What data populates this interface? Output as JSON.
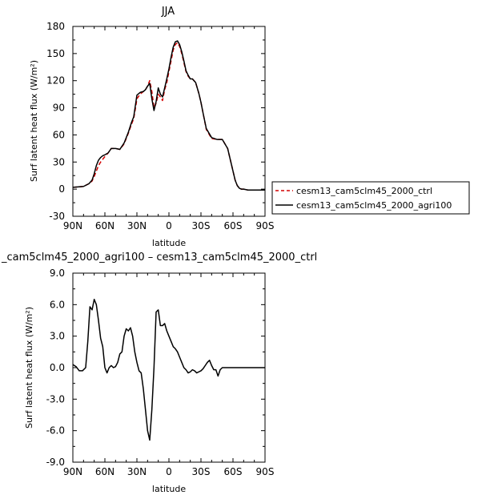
{
  "chart_data": [
    {
      "type": "line",
      "title": "JJA",
      "xlabel": "latitude",
      "ylabel": "Surf latent heat flux (W/m²)",
      "xlim": [
        90,
        -90
      ],
      "ylim": [
        -30,
        180
      ],
      "x_tick_values": [
        90,
        60,
        30,
        0,
        -30,
        -60,
        -90
      ],
      "x_tick_labels": [
        "90N",
        "60N",
        "30N",
        "0",
        "30S",
        "60S",
        "90S"
      ],
      "y_ticks": [
        -30,
        0,
        30,
        60,
        90,
        120,
        150,
        180
      ],
      "y_tick_labels": [
        "-30",
        "0",
        "30",
        "60",
        "90",
        "120",
        "150",
        "180"
      ],
      "legend_position": "right",
      "series": [
        {
          "name": "cesm13_cam5clm45_2000_ctrl",
          "color": "#d40000",
          "dash": true,
          "x": [
            90,
            80,
            75,
            72,
            70,
            68,
            66,
            64,
            62,
            60,
            57,
            54,
            50,
            46,
            42,
            38,
            35,
            33,
            31,
            30,
            27,
            24,
            22,
            20,
            18,
            16,
            14,
            12,
            10,
            8,
            6,
            4,
            2,
            0,
            -2,
            -4,
            -6,
            -8,
            -10,
            -12,
            -14,
            -16,
            -18,
            -20,
            -22,
            -25,
            -28,
            -30,
            -32,
            -35,
            -40,
            -45,
            -50,
            -55,
            -60,
            -62,
            -64,
            -66,
            -68,
            -70,
            -74,
            -78,
            -82,
            -86,
            -90
          ],
          "y": [
            2,
            3,
            6,
            9,
            14,
            20,
            26,
            30,
            33,
            36,
            40,
            45,
            45,
            44,
            50,
            62,
            72,
            78,
            92,
            100,
            105,
            108,
            110,
            114,
            120,
            108,
            90,
            95,
            105,
            102,
            98,
            110,
            118,
            130,
            142,
            154,
            160,
            162,
            158,
            150,
            140,
            130,
            125,
            122,
            122,
            118,
            106,
            96,
            84,
            66,
            56,
            55,
            55,
            45,
            20,
            10,
            4,
            1,
            0,
            0,
            -1,
            -1,
            -1,
            -1,
            -1
          ]
        },
        {
          "name": "cesm13_cam5clm45_2000_agri100",
          "color": "#000000",
          "dash": false,
          "x": [
            90,
            80,
            75,
            72,
            70,
            68,
            66,
            64,
            62,
            60,
            57,
            54,
            50,
            46,
            42,
            38,
            35,
            33,
            31,
            30,
            27,
            24,
            22,
            20,
            18,
            16,
            14,
            12,
            10,
            8,
            6,
            4,
            2,
            0,
            -2,
            -4,
            -6,
            -8,
            -10,
            -12,
            -14,
            -16,
            -18,
            -20,
            -22,
            -25,
            -28,
            -30,
            -32,
            -35,
            -40,
            -45,
            -50,
            -55,
            -60,
            -62,
            -64,
            -66,
            -68,
            -70,
            -74,
            -78,
            -82,
            -86,
            -90
          ],
          "y": [
            2,
            3,
            6,
            10,
            17,
            26,
            32,
            35,
            37,
            38,
            40,
            45,
            45,
            44,
            51,
            63,
            74,
            80,
            96,
            104,
            107,
            108,
            110,
            114,
            117,
            100,
            87,
            97,
            112,
            105,
            102,
            112,
            122,
            133,
            146,
            157,
            163,
            164,
            160,
            152,
            142,
            131,
            126,
            122,
            122,
            118,
            106,
            96,
            84,
            67,
            57,
            55,
            55,
            45,
            20,
            10,
            4,
            1,
            0,
            0,
            -1,
            -1,
            -1,
            -1,
            -1
          ]
        }
      ]
    },
    {
      "type": "line",
      "title": "_cam5clm45_2000_agri100 – cesm13_cam5clm45_2000_ctrl",
      "xlabel": "latitude",
      "ylabel": "Surf latent heat flux (W/m²)",
      "xlim": [
        90,
        -90
      ],
      "ylim": [
        -9,
        9
      ],
      "x_tick_values": [
        90,
        60,
        30,
        0,
        -30,
        -60,
        -90
      ],
      "x_tick_labels": [
        "90N",
        "60N",
        "30N",
        "0",
        "30S",
        "60S",
        "90S"
      ],
      "y_ticks": [
        -9,
        -6,
        -3,
        0,
        3,
        6,
        9
      ],
      "y_tick_labels": [
        "-9.0",
        "-6.0",
        "-3.0",
        "0.0",
        "3.0",
        "6.0",
        "9.0"
      ],
      "series": [
        {
          "color": "#000000",
          "dash": false,
          "x": [
            90,
            87,
            84,
            81,
            78,
            76,
            74,
            72,
            70,
            68,
            66,
            64,
            62,
            60,
            58,
            56,
            54,
            52,
            50,
            48,
            46,
            44,
            42,
            40,
            38,
            36,
            34,
            32,
            30,
            28,
            26,
            24,
            22,
            20,
            18,
            16,
            14,
            12,
            10,
            8,
            6,
            4,
            2,
            0,
            -2,
            -4,
            -6,
            -8,
            -10,
            -12,
            -14,
            -16,
            -18,
            -20,
            -22,
            -24,
            -26,
            -28,
            -30,
            -32,
            -34,
            -36,
            -38,
            -40,
            -42,
            -44,
            -46,
            -48,
            -50,
            -52,
            -54,
            -56,
            -58,
            -60,
            -62,
            -64,
            -66,
            -68,
            -70,
            -75,
            -80,
            -85,
            -90
          ],
          "y": [
            0.3,
            0.1,
            -0.3,
            -0.3,
            0.0,
            2.5,
            5.8,
            5.5,
            6.5,
            6.0,
            4.5,
            2.8,
            2.0,
            0.0,
            -0.5,
            0.0,
            0.2,
            0.0,
            0.1,
            0.5,
            1.3,
            1.5,
            3.0,
            3.7,
            3.5,
            3.8,
            3.0,
            1.5,
            0.5,
            -0.3,
            -0.5,
            -2.0,
            -4.0,
            -6.0,
            -6.9,
            -4.0,
            0.0,
            5.3,
            5.5,
            4.0,
            4.0,
            4.2,
            3.5,
            3.0,
            2.5,
            2.0,
            1.8,
            1.5,
            1.0,
            0.5,
            0.0,
            -0.2,
            -0.5,
            -0.4,
            -0.2,
            -0.3,
            -0.5,
            -0.4,
            -0.3,
            -0.1,
            0.2,
            0.5,
            0.7,
            0.2,
            -0.2,
            -0.2,
            -0.8,
            -0.2,
            0.0,
            0.0,
            0.0,
            0.0,
            0.0,
            0.0,
            0.0,
            0.0,
            0.0,
            0.0,
            0.0,
            0.0,
            0.0,
            0.0,
            0.0
          ]
        }
      ]
    }
  ]
}
